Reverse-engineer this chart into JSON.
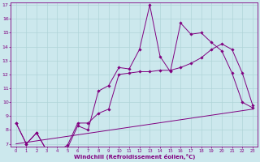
{
  "line1_x": [
    0,
    1,
    2,
    3,
    4,
    5,
    6,
    7,
    8,
    9,
    10,
    11,
    12,
    13,
    14,
    15,
    16,
    17,
    18,
    19,
    20,
    21,
    22,
    23
  ],
  "line1_y": [
    8.5,
    7.0,
    7.8,
    6.5,
    6.5,
    6.7,
    8.3,
    8.0,
    10.8,
    11.2,
    12.5,
    12.4,
    13.8,
    17.0,
    13.3,
    12.2,
    15.7,
    14.9,
    15.0,
    14.3,
    13.7,
    12.1,
    10.0,
    9.6
  ],
  "line2_x": [
    0,
    1,
    2,
    3,
    4,
    5,
    6,
    7,
    8,
    9,
    10,
    11,
    12,
    13,
    14,
    15,
    16,
    17,
    18,
    19,
    20,
    21,
    22,
    23
  ],
  "line2_y": [
    8.5,
    7.0,
    7.8,
    6.5,
    6.5,
    6.9,
    8.5,
    8.5,
    9.2,
    9.5,
    12.0,
    12.1,
    12.2,
    12.2,
    12.3,
    12.3,
    12.5,
    12.8,
    13.2,
    13.8,
    14.2,
    13.8,
    12.1,
    9.8
  ],
  "line3_x": [
    0,
    23
  ],
  "line3_y": [
    7.0,
    9.5
  ],
  "bg_color": "#cce8ed",
  "line_color": "#800080",
  "grid_color": "#b0d4d8",
  "xlabel": "Windchill (Refroidissement éolien,°C)",
  "ylim": [
    7,
    17
  ],
  "xlim": [
    0,
    23
  ],
  "yticks": [
    7,
    8,
    9,
    10,
    11,
    12,
    13,
    14,
    15,
    16,
    17
  ],
  "xticks": [
    0,
    1,
    2,
    3,
    4,
    5,
    6,
    7,
    8,
    9,
    10,
    11,
    12,
    13,
    14,
    15,
    16,
    17,
    18,
    19,
    20,
    21,
    22,
    23
  ]
}
